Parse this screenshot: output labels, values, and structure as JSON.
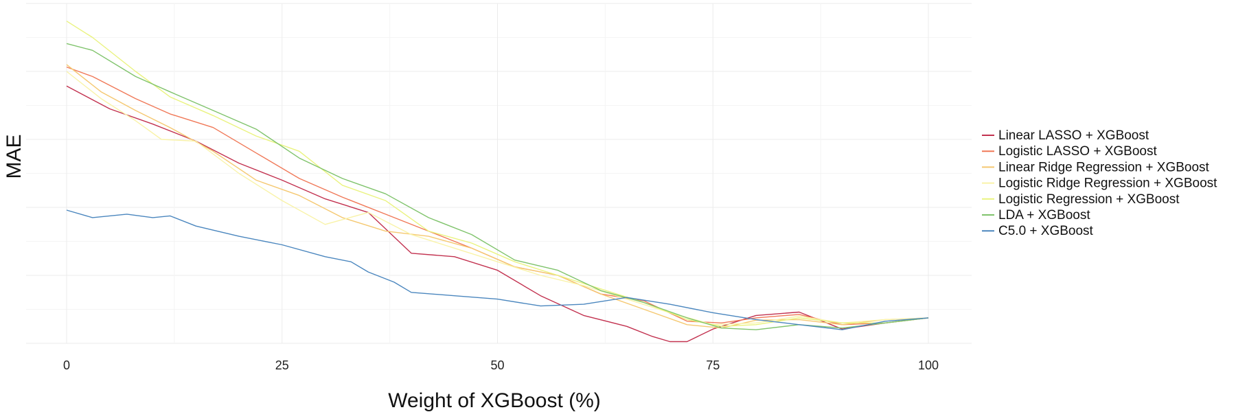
{
  "chart_data": {
    "type": "line",
    "title": "",
    "xlabel": "Weight of XGBoost (%)",
    "ylabel": "MAE",
    "xlim": [
      -3,
      105
    ],
    "ylim": [
      0.0,
      1.0
    ],
    "x_ticks": [
      0,
      25,
      50,
      75,
      100
    ],
    "grid": true,
    "legend_position": "right",
    "series": [
      {
        "name": "Linear LASSO + XGBoost",
        "color": "#c2314f",
        "x": [
          0,
          5,
          10,
          15,
          20,
          25,
          30,
          35,
          40,
          45,
          50,
          55,
          60,
          65,
          68,
          70,
          72,
          75,
          80,
          85,
          90,
          95,
          100
        ],
        "y": [
          0.757,
          0.69,
          0.645,
          0.595,
          0.53,
          0.48,
          0.425,
          0.385,
          0.265,
          0.255,
          0.215,
          0.14,
          0.082,
          0.05,
          0.02,
          0.005,
          0.005,
          0.042,
          0.082,
          0.092,
          0.042,
          0.06,
          0.075
        ]
      },
      {
        "name": "Logistic LASSO + XGBoost",
        "color": "#f07857",
        "x": [
          0,
          3,
          8,
          12,
          17,
          22,
          27,
          32,
          37,
          42,
          47,
          52,
          57,
          62,
          67,
          72,
          76,
          80,
          85,
          90,
          95,
          100
        ],
        "y": [
          0.813,
          0.785,
          0.72,
          0.675,
          0.635,
          0.56,
          0.485,
          0.43,
          0.38,
          0.33,
          0.28,
          0.225,
          0.2,
          0.145,
          0.125,
          0.065,
          0.06,
          0.075,
          0.085,
          0.055,
          0.06,
          0.075
        ]
      },
      {
        "name": "Linear Ridge Regression + XGBoost",
        "color": "#f5c870",
        "x": [
          0,
          4,
          8,
          12,
          17,
          22,
          27,
          32,
          37,
          42,
          47,
          52,
          57,
          62,
          67,
          72,
          76,
          80,
          85,
          90,
          95,
          100
        ],
        "y": [
          0.82,
          0.74,
          0.685,
          0.635,
          0.565,
          0.48,
          0.435,
          0.37,
          0.33,
          0.315,
          0.28,
          0.225,
          0.2,
          0.145,
          0.1,
          0.055,
          0.045,
          0.068,
          0.07,
          0.055,
          0.07,
          0.075
        ]
      },
      {
        "name": "Logistic Ridge Regression + XGBoost",
        "color": "#f9f3a8",
        "x": [
          0,
          4,
          8,
          11,
          15,
          20,
          25,
          30,
          35,
          40,
          45,
          50,
          55,
          60,
          65,
          70,
          75,
          80,
          85,
          90,
          95,
          100
        ],
        "y": [
          0.8,
          0.72,
          0.655,
          0.6,
          0.595,
          0.5,
          0.42,
          0.35,
          0.385,
          0.32,
          0.28,
          0.24,
          0.2,
          0.17,
          0.13,
          0.09,
          0.055,
          0.06,
          0.08,
          0.06,
          0.07,
          0.075
        ]
      },
      {
        "name": "Logistic Regression + XGBoost",
        "color": "#eaf37f",
        "x": [
          0,
          3,
          8,
          12,
          17,
          22,
          27,
          32,
          37,
          42,
          47,
          52,
          57,
          62,
          67,
          72,
          76,
          80,
          85,
          90,
          95,
          100
        ],
        "y": [
          0.948,
          0.9,
          0.8,
          0.725,
          0.67,
          0.61,
          0.565,
          0.465,
          0.42,
          0.33,
          0.295,
          0.24,
          0.2,
          0.16,
          0.12,
          0.07,
          0.05,
          0.055,
          0.075,
          0.06,
          0.06,
          0.075
        ]
      },
      {
        "name": "LDA + XGBoost",
        "color": "#7fc36b",
        "x": [
          0,
          3,
          8,
          12,
          17,
          22,
          27,
          32,
          37,
          42,
          47,
          52,
          57,
          62,
          67,
          72,
          76,
          80,
          85,
          90,
          95,
          100
        ],
        "y": [
          0.882,
          0.862,
          0.785,
          0.74,
          0.685,
          0.63,
          0.545,
          0.485,
          0.44,
          0.37,
          0.32,
          0.245,
          0.215,
          0.155,
          0.12,
          0.075,
          0.045,
          0.04,
          0.055,
          0.045,
          0.06,
          0.075
        ]
      },
      {
        "name": "C5.0 + XGBoost",
        "color": "#4a86be",
        "x": [
          0,
          3,
          7,
          10,
          12,
          15,
          20,
          25,
          30,
          33,
          35,
          38,
          40,
          45,
          50,
          55,
          60,
          65,
          70,
          75,
          80,
          85,
          90,
          95,
          100
        ],
        "y": [
          0.392,
          0.37,
          0.38,
          0.37,
          0.375,
          0.345,
          0.315,
          0.29,
          0.255,
          0.24,
          0.21,
          0.18,
          0.15,
          0.14,
          0.13,
          0.11,
          0.115,
          0.135,
          0.115,
          0.09,
          0.07,
          0.055,
          0.04,
          0.065,
          0.075
        ]
      }
    ]
  }
}
